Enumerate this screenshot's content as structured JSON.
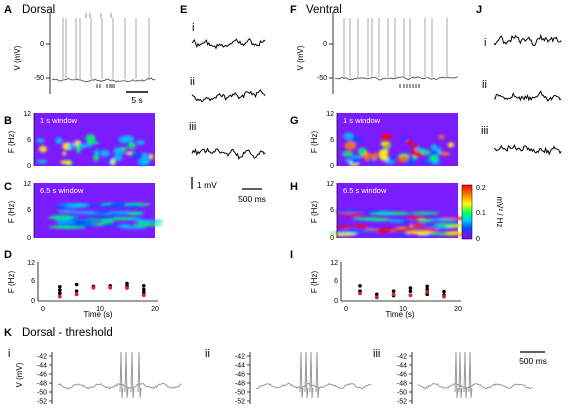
{
  "panel_labels": {
    "A": "A",
    "B": "B",
    "C": "C",
    "D": "D",
    "E": "E",
    "F": "F",
    "G": "G",
    "H": "H",
    "I": "I",
    "J": "J",
    "K": "K"
  },
  "titles": {
    "dorsal": "Dorsal",
    "ventral": "Ventral",
    "dorsal_threshold": "Dorsal - threshold"
  },
  "romans": [
    "i",
    "ii",
    "iii"
  ],
  "axes": {
    "v_label": "V (mV)",
    "f_label": "F (Hz)",
    "time_label": "Time (s)",
    "v_ticks": [
      "0",
      "-50"
    ],
    "f_ticks": [
      "12",
      "6",
      "0"
    ],
    "time_ticks_d": [
      "0",
      "10",
      "20"
    ],
    "time_ticks_i": [
      "0",
      "10",
      "20"
    ],
    "k_ticks": [
      "-42",
      "-44",
      "-46",
      "-48",
      "-50",
      "-52"
    ]
  },
  "window_labels": {
    "one": "1 s window",
    "six": "6.5 s window"
  },
  "scale_bars": {
    "a": "5 s",
    "e_v": "1 mV",
    "e_t": "500 ms",
    "k": "500 ms"
  },
  "colorbar": {
    "ticks": [
      "0.2",
      "0.1",
      "0"
    ],
    "unit": "mV² / Hz",
    "colors": [
      "#ff0000",
      "#ff8000",
      "#ffff00",
      "#00ff66",
      "#00c8ff",
      "#0050ff",
      "#6c1aff",
      "#8000ff"
    ]
  },
  "colors": {
    "trace": "#555555",
    "spike": "#a0a0a0",
    "black_dot": "#000000",
    "red_dot": "#e02020",
    "spectrogram_bg": "#7a1cff"
  },
  "chart_data": [
    {
      "type": "scatter",
      "panel": "D",
      "xlabel": "Time (s)",
      "ylabel": "F (Hz)",
      "xlim": [
        0,
        20
      ],
      "ylim": [
        0,
        12
      ],
      "series": [
        {
          "black_points": [
            [
              3,
              4.5
            ],
            [
              3,
              3.4
            ],
            [
              3,
              2.4
            ],
            [
              6,
              5.2
            ],
            [
              6,
              3.1
            ],
            [
              9,
              4.4
            ],
            [
              9,
              4.6
            ],
            [
              12,
              4.8
            ],
            [
              12,
              4.3
            ],
            [
              15,
              5.5
            ],
            [
              15,
              4.7
            ],
            [
              18,
              4.8
            ],
            [
              18,
              3.6
            ],
            [
              18,
              2.7
            ]
          ],
          "red_points": [
            [
              3,
              1.4
            ],
            [
              6,
              2.1
            ],
            [
              9,
              4.2
            ],
            [
              12,
              4.2
            ],
            [
              15,
              4.1
            ],
            [
              18,
              1.8
            ]
          ]
        }
      ]
    },
    {
      "type": "scatter",
      "panel": "I",
      "xlabel": "Time (s)",
      "ylabel": "F (Hz)",
      "xlim": [
        0,
        20
      ],
      "ylim": [
        0,
        12
      ],
      "series": [
        {
          "black_points": [
            [
              2.5,
              4.8
            ],
            [
              2.5,
              3.1
            ],
            [
              5.5,
              2.1
            ],
            [
              8.5,
              3.1
            ],
            [
              8.5,
              1.7
            ],
            [
              11.5,
              4.1
            ],
            [
              11.5,
              3.1
            ],
            [
              14.5,
              4.6
            ],
            [
              14.5,
              3.6
            ],
            [
              14.5,
              2.1
            ],
            [
              17.5,
              3.0
            ],
            [
              17.5,
              1.9
            ]
          ],
          "red_points": [
            [
              2.5,
              2.4
            ],
            [
              5.5,
              1.1
            ],
            [
              8.5,
              2.1
            ],
            [
              11.5,
              1.8
            ],
            [
              14.5,
              2.9
            ],
            [
              17.5,
              1.4
            ]
          ]
        }
      ]
    }
  ]
}
